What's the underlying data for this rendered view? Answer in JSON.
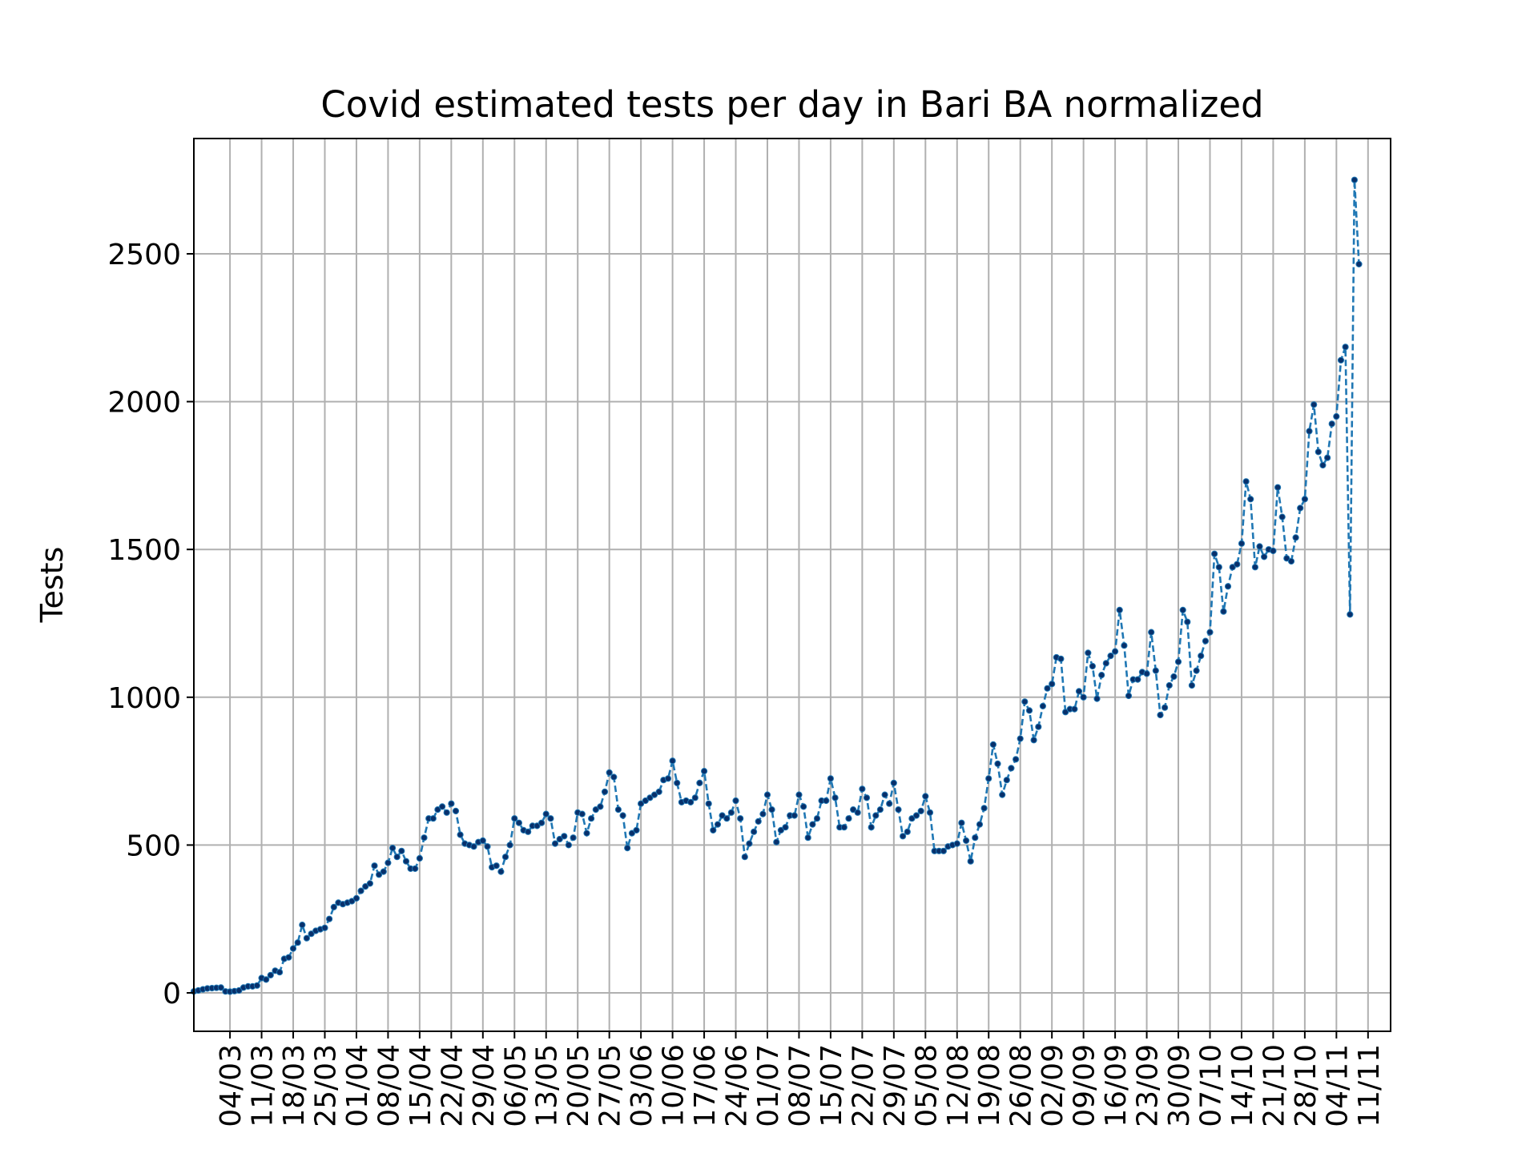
{
  "chart_data": {
    "type": "line",
    "title": "Covid estimated tests per day in Bari BA normalized",
    "xlabel": "",
    "ylabel": "Tests",
    "x_axis": {
      "type": "date",
      "year": 2020,
      "range": [
        "2020-02-25",
        "2020-11-16"
      ],
      "tick_dates": [
        "2020-03-04",
        "2020-03-11",
        "2020-03-18",
        "2020-03-25",
        "2020-04-01",
        "2020-04-08",
        "2020-04-15",
        "2020-04-22",
        "2020-04-29",
        "2020-05-06",
        "2020-05-13",
        "2020-05-20",
        "2020-05-27",
        "2020-06-03",
        "2020-06-10",
        "2020-06-17",
        "2020-06-24",
        "2020-07-01",
        "2020-07-08",
        "2020-07-15",
        "2020-07-22",
        "2020-07-29",
        "2020-08-05",
        "2020-08-12",
        "2020-08-19",
        "2020-08-26",
        "2020-09-02",
        "2020-09-09",
        "2020-09-16",
        "2020-09-23",
        "2020-09-30",
        "2020-10-07",
        "2020-10-14",
        "2020-10-21",
        "2020-10-28",
        "2020-11-04",
        "2020-11-11"
      ],
      "tick_labels": [
        "04/03",
        "11/03",
        "18/03",
        "25/03",
        "01/04",
        "08/04",
        "15/04",
        "22/04",
        "29/04",
        "06/05",
        "13/05",
        "20/05",
        "27/05",
        "03/06",
        "10/06",
        "17/06",
        "24/06",
        "01/07",
        "08/07",
        "15/07",
        "22/07",
        "29/07",
        "05/08",
        "12/08",
        "19/08",
        "26/08",
        "02/09",
        "09/09",
        "16/09",
        "23/09",
        "30/09",
        "07/10",
        "14/10",
        "21/10",
        "28/10",
        "04/11",
        "11/11"
      ]
    },
    "y_axis": {
      "range": [
        -130,
        2890
      ],
      "ticks": [
        0,
        500,
        1000,
        1500,
        2000,
        2500
      ],
      "tick_labels": [
        "0",
        "500",
        "1000",
        "1500",
        "2000",
        "2500"
      ]
    },
    "grid": true,
    "series": [
      {
        "color": "#1f77b4",
        "marker_color": "#08306b",
        "line_style": "dashed",
        "marker": "dot",
        "start_date": "2020-02-25",
        "end_date": "2020-11-13",
        "values": [
          5,
          8,
          12,
          15,
          16,
          17,
          18,
          5,
          4,
          6,
          8,
          18,
          22,
          22,
          25,
          50,
          45,
          60,
          75,
          70,
          115,
          120,
          150,
          170,
          230,
          185,
          200,
          210,
          215,
          220,
          250,
          290,
          305,
          300,
          305,
          310,
          320,
          345,
          360,
          370,
          430,
          400,
          410,
          440,
          490,
          460,
          480,
          445,
          420,
          420,
          455,
          525,
          590,
          590,
          620,
          630,
          610,
          640,
          615,
          535,
          505,
          500,
          495,
          510,
          515,
          495,
          425,
          430,
          410,
          460,
          500,
          590,
          575,
          550,
          545,
          565,
          565,
          575,
          605,
          590,
          505,
          520,
          530,
          500,
          525,
          610,
          605,
          540,
          590,
          620,
          630,
          680,
          745,
          730,
          620,
          600,
          490,
          540,
          550,
          640,
          650,
          660,
          670,
          680,
          720,
          725,
          785,
          710,
          645,
          650,
          645,
          660,
          710,
          750,
          640,
          550,
          570,
          600,
          590,
          610,
          650,
          590,
          460,
          505,
          545,
          580,
          605,
          670,
          620,
          510,
          550,
          560,
          600,
          600,
          670,
          630,
          525,
          570,
          590,
          650,
          650,
          725,
          660,
          560,
          560,
          590,
          620,
          610,
          690,
          660,
          560,
          600,
          620,
          670,
          640,
          710,
          620,
          530,
          545,
          590,
          600,
          615,
          665,
          610,
          480,
          480,
          480,
          495,
          500,
          505,
          575,
          515,
          445,
          525,
          570,
          625,
          725,
          840,
          775,
          670,
          720,
          760,
          790,
          860,
          985,
          955,
          855,
          900,
          970,
          1030,
          1045,
          1135,
          1130,
          950,
          960,
          960,
          1020,
          1000,
          1150,
          1105,
          995,
          1075,
          1115,
          1140,
          1155,
          1295,
          1175,
          1005,
          1060,
          1060,
          1085,
          1080,
          1220,
          1090,
          940,
          965,
          1040,
          1070,
          1120,
          1295,
          1255,
          1040,
          1090,
          1140,
          1190,
          1220,
          1485,
          1440,
          1290,
          1375,
          1440,
          1450,
          1520,
          1730,
          1670,
          1440,
          1510,
          1475,
          1500,
          1495,
          1710,
          1610,
          1470,
          1460,
          1540,
          1640,
          1670,
          1900,
          1990,
          1830,
          1785,
          1810,
          1925,
          1950,
          2140,
          2185,
          1280,
          2750,
          2465
        ]
      }
    ]
  }
}
